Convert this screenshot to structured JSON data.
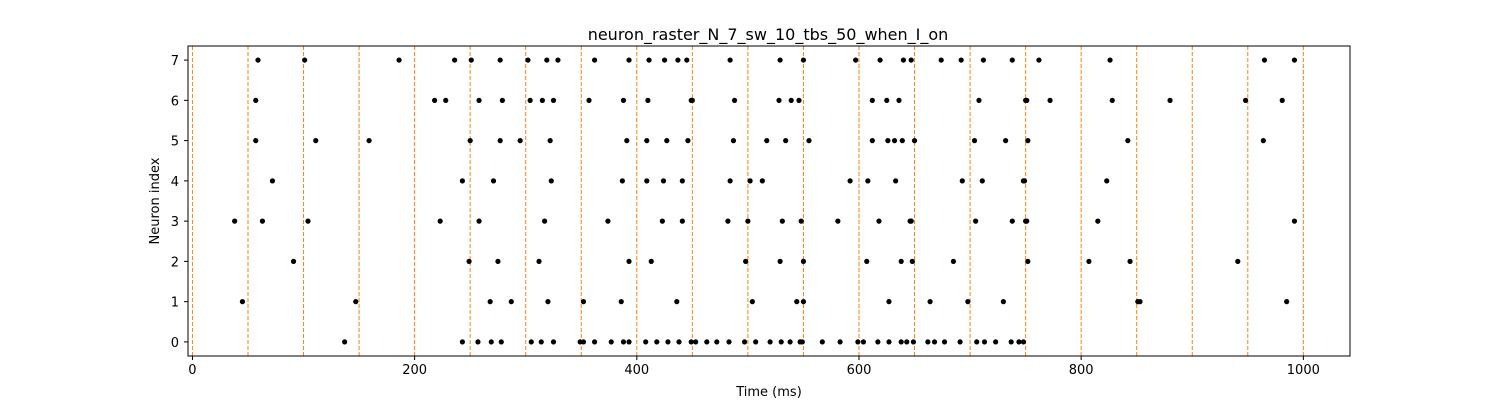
{
  "chart_data": {
    "type": "scatter",
    "title": "neuron_raster_N_7_sw_10_tbs_50_when_I_on",
    "xlabel": "Time (ms)",
    "ylabel": "Neuron index",
    "xlim": [
      -4,
      1042
    ],
    "ylim": [
      -0.35,
      7.35
    ],
    "xticks": [
      0,
      200,
      400,
      600,
      800,
      1000
    ],
    "yticks": [
      0,
      1,
      2,
      3,
      4,
      5,
      6,
      7
    ],
    "grid": false,
    "marker_color": "#000000",
    "vline_color": "#ff7f0e",
    "vlines_x": [
      0,
      50,
      100,
      150,
      200,
      250,
      300,
      350,
      400,
      450,
      500,
      550,
      600,
      650,
      700,
      750,
      800,
      850,
      900,
      950,
      1000
    ],
    "series": [
      {
        "neuron": 0,
        "x": [
          137,
          243,
          257,
          269,
          278,
          305,
          314,
          325,
          349,
          352,
          362,
          377,
          388,
          393,
          408,
          418,
          428,
          438,
          449,
          453,
          463,
          472,
          483,
          497,
          507,
          520,
          530,
          538,
          547,
          549,
          567,
          583,
          599,
          604,
          617,
          627,
          638,
          643,
          649,
          662,
          668,
          677,
          691,
          706,
          713,
          723,
          737,
          744,
          748
        ]
      },
      {
        "neuron": 1,
        "x": [
          45,
          147,
          268,
          287,
          320,
          352,
          386,
          436,
          504,
          544,
          550,
          627,
          664,
          698,
          730,
          851,
          853,
          985
        ]
      },
      {
        "neuron": 2,
        "x": [
          91,
          249,
          275,
          312,
          393,
          413,
          498,
          529,
          550,
          607,
          638,
          648,
          685,
          752,
          807,
          844,
          941
        ]
      },
      {
        "neuron": 3,
        "x": [
          38,
          63,
          104,
          223,
          258,
          317,
          374,
          423,
          441,
          482,
          500,
          531,
          548,
          581,
          618,
          646,
          647,
          705,
          738,
          750,
          751,
          815,
          992
        ]
      },
      {
        "neuron": 4,
        "x": [
          72,
          243,
          271,
          323,
          387,
          409,
          424,
          441,
          484,
          502,
          513,
          592,
          608,
          633,
          693,
          711,
          748,
          749,
          823
        ]
      },
      {
        "neuron": 5,
        "x": [
          57,
          111,
          159,
          250,
          277,
          295,
          322,
          391,
          409,
          427,
          446,
          487,
          517,
          534,
          555,
          612,
          626,
          632,
          639,
          650,
          704,
          732,
          752,
          842,
          964
        ]
      },
      {
        "neuron": 6,
        "x": [
          57,
          218,
          228,
          258,
          279,
          304,
          315,
          325,
          357,
          388,
          410,
          449,
          450,
          488,
          528,
          539,
          546,
          612,
          625,
          636,
          708,
          750,
          751,
          772,
          828,
          880,
          948,
          981
        ]
      },
      {
        "neuron": 7,
        "x": [
          59,
          101,
          186,
          236,
          251,
          277,
          302,
          319,
          329,
          362,
          393,
          411,
          425,
          437,
          445,
          484,
          529,
          550,
          597,
          619,
          640,
          647,
          674,
          692,
          712,
          738,
          762,
          826,
          965,
          992
        ]
      }
    ]
  }
}
